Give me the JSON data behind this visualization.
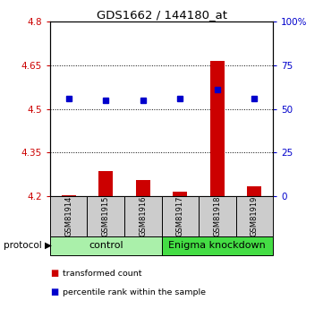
{
  "title": "GDS1662 / 144180_at",
  "samples": [
    "GSM81914",
    "GSM81915",
    "GSM81916",
    "GSM81917",
    "GSM81918",
    "GSM81919"
  ],
  "red_values": [
    4.202,
    4.285,
    4.255,
    4.215,
    4.665,
    4.235
  ],
  "blue_values": [
    4.535,
    4.53,
    4.53,
    4.535,
    4.565,
    4.535
  ],
  "ylim_left": [
    4.2,
    4.8
  ],
  "ylim_right": [
    0,
    100
  ],
  "yticks_left": [
    4.2,
    4.35,
    4.5,
    4.65,
    4.8
  ],
  "yticks_right": [
    0,
    25,
    50,
    75,
    100
  ],
  "ytick_labels_left": [
    "4.2",
    "4.35",
    "4.5",
    "4.65",
    "4.8"
  ],
  "ytick_labels_right": [
    "0",
    "25",
    "50",
    "75",
    "100%"
  ],
  "groups": [
    {
      "label": "control",
      "samples_idx": [
        0,
        1,
        2
      ],
      "color": "#aaf0aa"
    },
    {
      "label": "Enigma knockdown",
      "samples_idx": [
        3,
        4,
        5
      ],
      "color": "#44dd44"
    }
  ],
  "protocol_label": "protocol",
  "legend_items": [
    {
      "color": "#cc0000",
      "label": "transformed count"
    },
    {
      "color": "#0000cc",
      "label": "percentile rank within the sample"
    }
  ],
  "bar_color": "#cc0000",
  "dot_color": "#0000cc",
  "bar_baseline": 4.2,
  "bg_plot": "#ffffff",
  "bg_sample_boxes": "#cccccc",
  "tick_color_left": "#cc0000",
  "tick_color_right": "#0000cc",
  "dotted_grid_color": "#000000",
  "dotted_grid_yticks": [
    4.35,
    4.5,
    4.65
  ]
}
